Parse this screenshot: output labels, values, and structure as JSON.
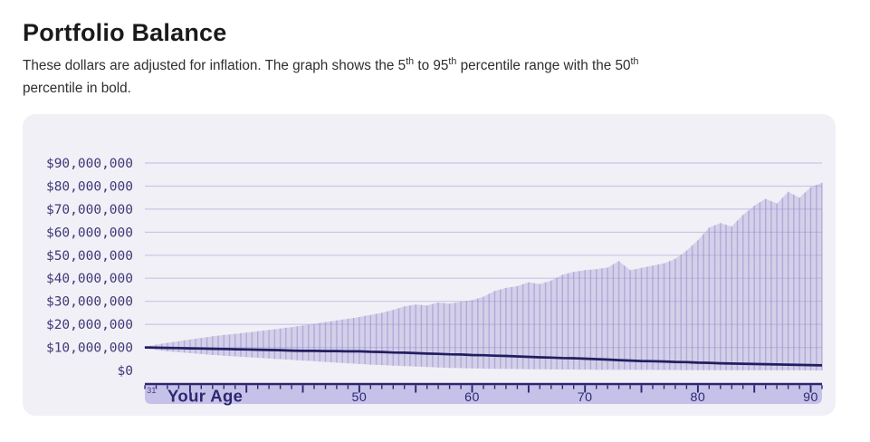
{
  "header": {
    "title": "Portfolio Balance",
    "subtitle": {
      "part1": "These dollars are adjusted for inflation. The graph shows the 5",
      "sup1": "th",
      "part2": " to 95",
      "sup2": "th",
      "part3": " percentile range with the 50",
      "sup3": "th",
      "part4": "percentile in bold."
    }
  },
  "chart_data": {
    "type": "area",
    "title": "Portfolio Balance",
    "xlabel": "Your Age",
    "ylabel": "",
    "unit": "millions_of_dollars",
    "xlim": [
      31,
      91
    ],
    "ylim_dollars": [
      0,
      90000000
    ],
    "grid": true,
    "start_age_label": "31",
    "x": [
      31,
      32,
      33,
      34,
      35,
      36,
      37,
      38,
      39,
      40,
      41,
      42,
      43,
      44,
      45,
      46,
      47,
      48,
      49,
      50,
      51,
      52,
      53,
      54,
      55,
      56,
      57,
      58,
      59,
      60,
      61,
      62,
      63,
      64,
      65,
      66,
      67,
      68,
      69,
      70,
      71,
      72,
      73,
      74,
      75,
      76,
      77,
      78,
      79,
      80,
      81,
      82,
      83,
      84,
      85,
      86,
      87,
      88,
      89,
      90,
      91
    ],
    "series": [
      {
        "name": "95th percentile",
        "values": [
          10.3,
          11.2,
          12.0,
          12.7,
          13.4,
          14.1,
          14.8,
          15.4,
          15.9,
          16.4,
          17.0,
          17.6,
          18.2,
          18.8,
          19.5,
          20.2,
          21.0,
          21.7,
          22.4,
          23.2,
          24.1,
          25.0,
          26.3,
          27.8,
          28.6,
          28.2,
          29.5,
          29.0,
          29.8,
          30.5,
          32.0,
          34.5,
          35.8,
          36.6,
          38.3,
          37.5,
          39.0,
          41.5,
          42.8,
          43.5,
          44.0,
          44.6,
          47.5,
          43.5,
          44.5,
          45.5,
          46.5,
          48.5,
          52.0,
          56.5,
          62.0,
          64.0,
          62.5,
          67.5,
          71.5,
          74.5,
          72.5,
          77.5,
          75.0,
          79.5,
          81.5
        ]
      },
      {
        "name": "50th percentile",
        "values": [
          10.0,
          9.9,
          9.8,
          9.7,
          9.6,
          9.5,
          9.4,
          9.3,
          9.2,
          9.1,
          9.0,
          8.9,
          8.8,
          8.6,
          8.5,
          8.5,
          8.4,
          8.4,
          8.3,
          8.3,
          8.1,
          8.0,
          7.8,
          7.7,
          7.5,
          7.3,
          7.2,
          7.0,
          6.9,
          6.7,
          6.6,
          6.4,
          6.3,
          6.1,
          5.9,
          5.7,
          5.6,
          5.4,
          5.3,
          5.1,
          4.9,
          4.7,
          4.5,
          4.3,
          4.1,
          4.0,
          3.9,
          3.7,
          3.6,
          3.4,
          3.3,
          3.1,
          3.0,
          2.9,
          2.8,
          2.7,
          2.6,
          2.5,
          2.4,
          2.3,
          2.2
        ]
      },
      {
        "name": "5th percentile",
        "values": [
          9.7,
          8.9,
          8.3,
          7.9,
          7.5,
          7.1,
          6.7,
          6.4,
          6.1,
          5.8,
          5.5,
          5.2,
          4.9,
          4.6,
          4.3,
          4.0,
          3.7,
          3.4,
          3.1,
          2.8,
          2.5,
          2.3,
          2.1,
          1.9,
          1.7,
          1.5,
          1.3,
          1.1,
          1.0,
          0.9,
          0.8,
          0.7,
          0.65,
          0.6,
          0.55,
          0.5,
          0.45,
          0.4,
          0.38,
          0.35,
          0.32,
          0.3,
          0.28,
          0.26,
          0.24,
          0.22,
          0.2,
          0.18,
          0.16,
          0.15,
          0.14,
          0.13,
          0.12,
          0.11,
          0.1,
          0.09,
          0.08,
          0.07,
          0.06,
          0.05,
          0.05
        ]
      }
    ],
    "y_tick_labels": [
      "$90,000,000",
      "$80,000,000",
      "$70,000,000",
      "$60,000,000",
      "$50,000,000",
      "$40,000,000",
      "$30,000,000",
      "$20,000,000",
      "$10,000,000",
      "$0"
    ],
    "x_ticks": [
      50,
      60,
      70,
      80,
      90
    ],
    "x_tick_labels": [
      "50",
      "60",
      "70",
      "80",
      "90"
    ],
    "colors": {
      "accent": "#2d2771",
      "median_line": "#221e60",
      "band_fill": "#aca5d6",
      "bar_line": "#938bcc",
      "grid_line": "#c9c5e6",
      "axis_strip_bg": "#c6c1e8",
      "y_label_color": "#3e3877",
      "age_start_color": "#4b4494",
      "card_bg": "#f1f0f7",
      "title_color": "#1a1a1a"
    }
  }
}
